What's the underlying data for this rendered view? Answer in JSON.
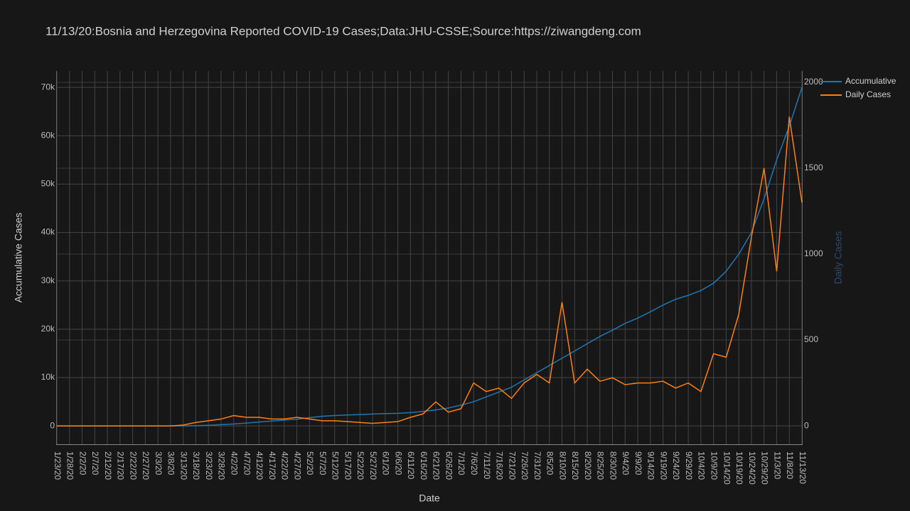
{
  "chart_data": {
    "type": "line",
    "title": "11/13/20:Bosnia and Herzegovina Reported COVID-19 Cases;Data:JHU-CSSE;Source:https://ziwangdeng.com",
    "x_label": "Date",
    "y_label": "Accumulative Cases",
    "y2_label": "Daily Cases",
    "categories": [
      "1/23/20",
      "1/28/20",
      "2/2/20",
      "2/7/20",
      "2/12/20",
      "2/17/20",
      "2/22/20",
      "2/27/20",
      "3/3/20",
      "3/8/20",
      "3/13/20",
      "3/18/20",
      "3/23/20",
      "3/28/20",
      "4/2/20",
      "4/7/20",
      "4/12/20",
      "4/17/20",
      "4/22/20",
      "4/27/20",
      "5/2/20",
      "5/7/20",
      "5/12/20",
      "5/17/20",
      "5/22/20",
      "5/27/20",
      "6/1/20",
      "6/6/20",
      "6/11/20",
      "6/16/20",
      "6/21/20",
      "6/26/20",
      "7/1/20",
      "7/6/20",
      "7/11/20",
      "7/16/20",
      "7/21/20",
      "7/26/20",
      "7/31/20",
      "8/5/20",
      "8/10/20",
      "8/15/20",
      "8/20/20",
      "8/25/20",
      "8/30/20",
      "9/4/20",
      "9/9/20",
      "9/14/20",
      "9/19/20",
      "9/24/20",
      "9/29/20",
      "10/4/20",
      "10/9/20",
      "10/14/20",
      "10/19/20",
      "10/24/20",
      "10/29/20",
      "11/3/20",
      "11/8/20",
      "11/13/20"
    ],
    "series": [
      {
        "name": "Accumulative",
        "color": "#1f77b4",
        "axis": "y",
        "values": [
          0,
          0,
          0,
          0,
          0,
          0,
          0,
          0,
          0,
          0,
          10,
          60,
          130,
          250,
          400,
          580,
          800,
          1000,
          1200,
          1400,
          1700,
          2000,
          2150,
          2250,
          2350,
          2450,
          2550,
          2600,
          2750,
          3000,
          3300,
          3700,
          4300,
          5000,
          6000,
          7000,
          8000,
          9500,
          11000,
          12500,
          14000,
          15500,
          17000,
          18500,
          19800,
          21200,
          22300,
          23600,
          25000,
          26200,
          27000,
          28000,
          29500,
          32000,
          35500,
          40000,
          47000,
          55000,
          62000,
          70000
        ]
      },
      {
        "name": "Daily Cases",
        "color": "#ff7f0e",
        "axis": "y2",
        "values": [
          0,
          0,
          0,
          0,
          0,
          0,
          0,
          0,
          0,
          0,
          5,
          20,
          30,
          40,
          60,
          50,
          50,
          40,
          40,
          50,
          40,
          30,
          30,
          25,
          20,
          15,
          20,
          25,
          50,
          70,
          140,
          80,
          100,
          250,
          200,
          220,
          160,
          250,
          300,
          250,
          720,
          250,
          330,
          260,
          280,
          240,
          250,
          250,
          260,
          220,
          250,
          200,
          420,
          400,
          650,
          1100,
          1500,
          900,
          1800,
          1300
        ]
      }
    ],
    "ylim": [
      -3800,
      73400
    ],
    "yticks": [
      0,
      {
        "value": 10000,
        "label": "10k"
      },
      {
        "value": 20000,
        "label": "20k"
      },
      {
        "value": 30000,
        "label": "30k"
      },
      {
        "value": 40000,
        "label": "40k"
      },
      {
        "value": 50000,
        "label": "50k"
      },
      {
        "value": 60000,
        "label": "60k"
      },
      {
        "value": 70000,
        "label": "70k"
      }
    ],
    "y2lim": [
      -107,
      2066
    ],
    "y2ticks": [
      0,
      500,
      1000,
      1500,
      2000
    ],
    "grid": true,
    "legend": "top-right"
  }
}
